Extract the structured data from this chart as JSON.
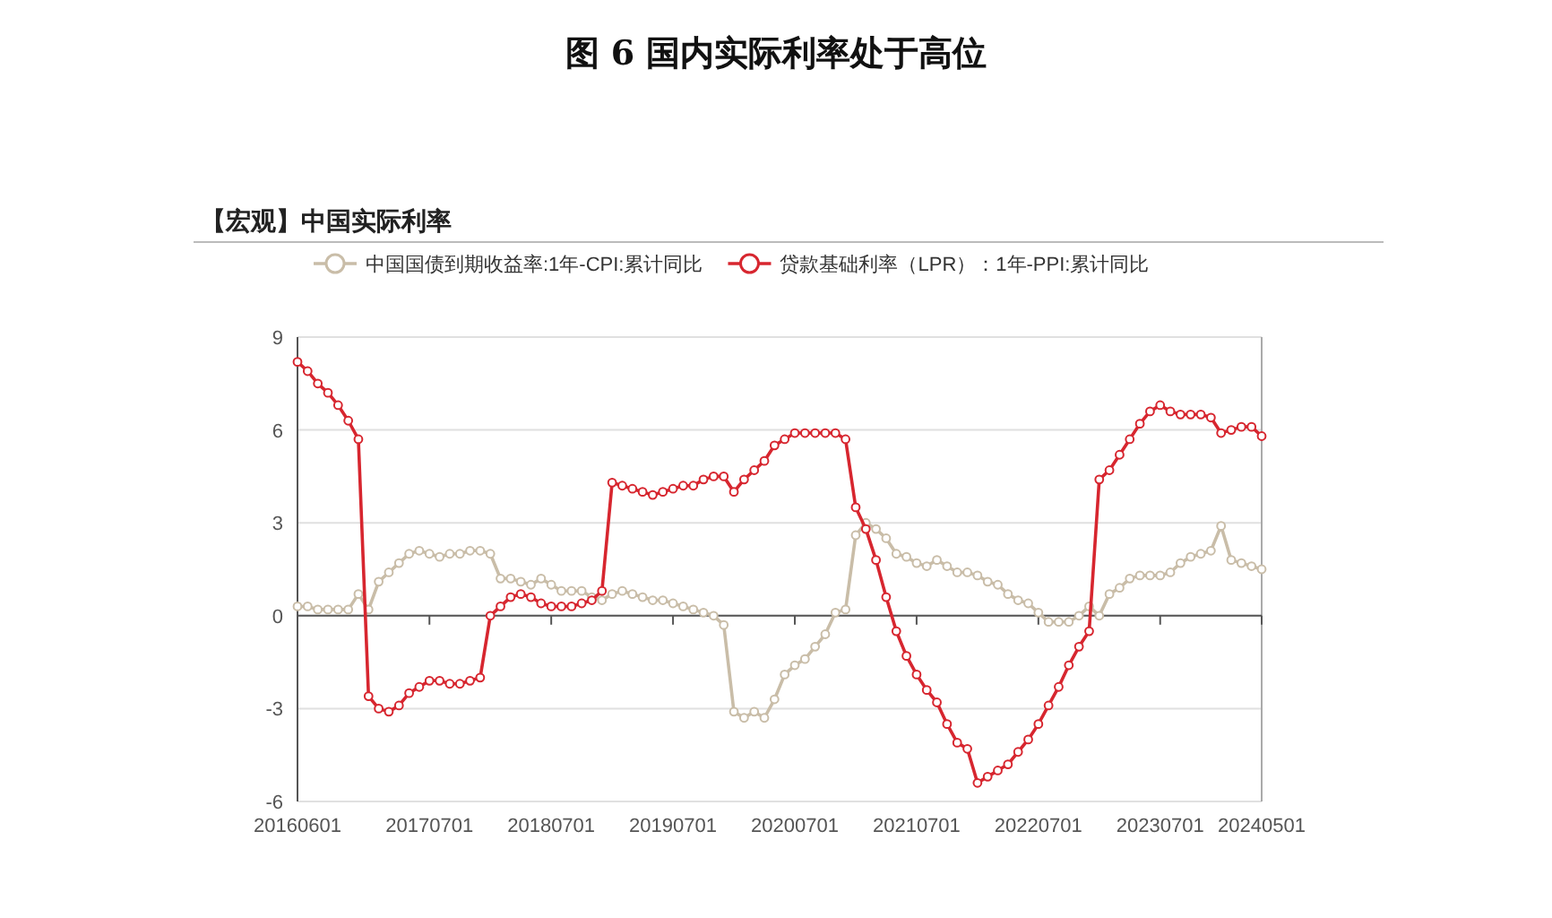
{
  "chart_data": {
    "type": "line",
    "title": "图 6  国内实际利率处于高位",
    "subtitle": "【宏观】中国实际利率",
    "categories": [
      "20160601",
      null,
      null,
      null,
      null,
      null,
      null,
      null,
      null,
      null,
      null,
      null,
      null,
      "20170701",
      null,
      null,
      null,
      null,
      null,
      null,
      null,
      null,
      null,
      null,
      null,
      "20180701",
      null,
      null,
      null,
      null,
      null,
      null,
      null,
      null,
      null,
      null,
      null,
      "20190701",
      null,
      null,
      null,
      null,
      null,
      null,
      null,
      null,
      null,
      null,
      null,
      "20200701",
      null,
      null,
      null,
      null,
      null,
      null,
      null,
      null,
      null,
      null,
      null,
      "20210701",
      null,
      null,
      null,
      null,
      null,
      null,
      null,
      null,
      null,
      null,
      null,
      "20220701",
      null,
      null,
      null,
      null,
      null,
      null,
      null,
      null,
      null,
      null,
      null,
      "20230701",
      null,
      null,
      null,
      null,
      null,
      null,
      null,
      null,
      null,
      "20240501"
    ],
    "series": [
      {
        "name": "中国国债到期收益率:1年-CPI:累计同比",
        "color": "#c9bda8",
        "values": [
          0.3,
          0.3,
          0.2,
          0.2,
          0.2,
          0.2,
          0.7,
          0.2,
          1.1,
          1.4,
          1.7,
          2.0,
          2.1,
          2.0,
          1.9,
          2.0,
          2.0,
          2.1,
          2.1,
          2.0,
          1.2,
          1.2,
          1.1,
          1.0,
          1.2,
          1.0,
          0.8,
          0.8,
          0.8,
          0.6,
          0.5,
          0.7,
          0.8,
          0.7,
          0.6,
          0.5,
          0.5,
          0.4,
          0.3,
          0.2,
          0.1,
          0.0,
          -0.3,
          -3.1,
          -3.3,
          -3.1,
          -3.3,
          -2.7,
          -1.9,
          -1.6,
          -1.4,
          -1.0,
          -0.6,
          0.1,
          0.2,
          2.6,
          3.0,
          2.8,
          2.5,
          2.0,
          1.9,
          1.7,
          1.6,
          1.8,
          1.6,
          1.4,
          1.4,
          1.3,
          1.1,
          1.0,
          0.7,
          0.5,
          0.4,
          0.1,
          -0.2,
          -0.2,
          -0.2,
          0.0,
          0.3,
          0.0,
          0.7,
          0.9,
          1.2,
          1.3,
          1.3,
          1.3,
          1.4,
          1.7,
          1.9,
          2.0,
          2.1,
          2.9,
          1.8,
          1.7,
          1.6,
          1.5
        ]
      },
      {
        "name": "贷款基础利率（LPR）：1年-PPI:累计同比",
        "color": "#d7262f",
        "values": [
          8.2,
          7.9,
          7.5,
          7.2,
          6.8,
          6.3,
          5.7,
          -2.6,
          -3.0,
          -3.1,
          -2.9,
          -2.5,
          -2.3,
          -2.1,
          -2.1,
          -2.2,
          -2.2,
          -2.1,
          -2.0,
          0.0,
          0.3,
          0.6,
          0.7,
          0.6,
          0.4,
          0.3,
          0.3,
          0.3,
          0.4,
          0.5,
          0.8,
          4.3,
          4.2,
          4.1,
          4.0,
          3.9,
          4.0,
          4.1,
          4.2,
          4.2,
          4.4,
          4.5,
          4.5,
          4.0,
          4.4,
          4.7,
          5.0,
          5.5,
          5.7,
          5.9,
          5.9,
          5.9,
          5.9,
          5.9,
          5.7,
          3.5,
          2.8,
          1.8,
          0.6,
          -0.5,
          -1.3,
          -1.9,
          -2.4,
          -2.8,
          -3.5,
          -4.1,
          -4.3,
          -5.4,
          -5.2,
          -5.0,
          -4.8,
          -4.4,
          -4.0,
          -3.5,
          -2.9,
          -2.3,
          -1.6,
          -1.0,
          -0.5,
          4.4,
          4.7,
          5.2,
          5.7,
          6.2,
          6.6,
          6.8,
          6.6,
          6.5,
          6.5,
          6.5,
          6.4,
          5.9,
          6.0,
          6.1,
          6.1,
          5.8
        ]
      }
    ],
    "ylim": [
      -6,
      9
    ],
    "yticks": [
      -6,
      -3,
      0,
      3,
      6,
      9
    ],
    "grid": "y",
    "legend": "top",
    "marker": "circle",
    "line_style": "solid"
  }
}
